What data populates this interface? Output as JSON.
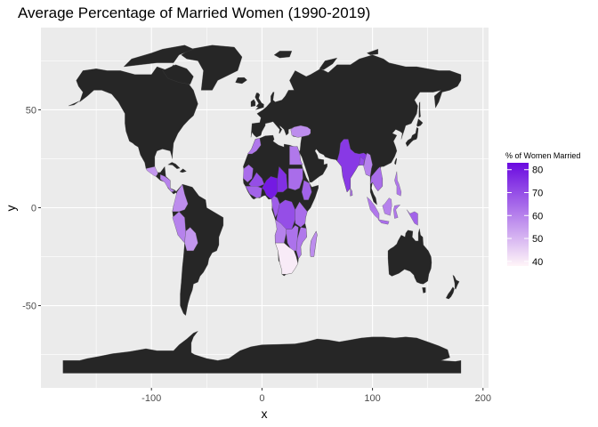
{
  "chart_data": {
    "type": "choropleth-map",
    "title": "Average Percentage of Married Women (1990-2019)",
    "xlabel": "x",
    "ylabel": "y",
    "xlim": [
      -200,
      205
    ],
    "ylim": [
      -92,
      92
    ],
    "x_ticks": [
      -100,
      0,
      100,
      200
    ],
    "x_tick_labels": [
      "-100",
      "0",
      "100",
      "200"
    ],
    "y_ticks": [
      -50,
      0,
      50
    ],
    "y_tick_labels": [
      "-50",
      "0",
      "50"
    ],
    "grid": true,
    "legend": {
      "title": "% of Women Married",
      "placement": "right",
      "min": 38,
      "max": 83,
      "low_color": "#fff5f8",
      "high_color": "#6a0ae0",
      "ticks": [
        40,
        50,
        60,
        70,
        80
      ],
      "tick_labels": [
        "40",
        "50",
        "60",
        "70",
        "80"
      ]
    },
    "colors": {
      "panel_background": "#ebebeb",
      "grid_major": "#ffffff",
      "land_no_data": "#262626"
    }
  }
}
